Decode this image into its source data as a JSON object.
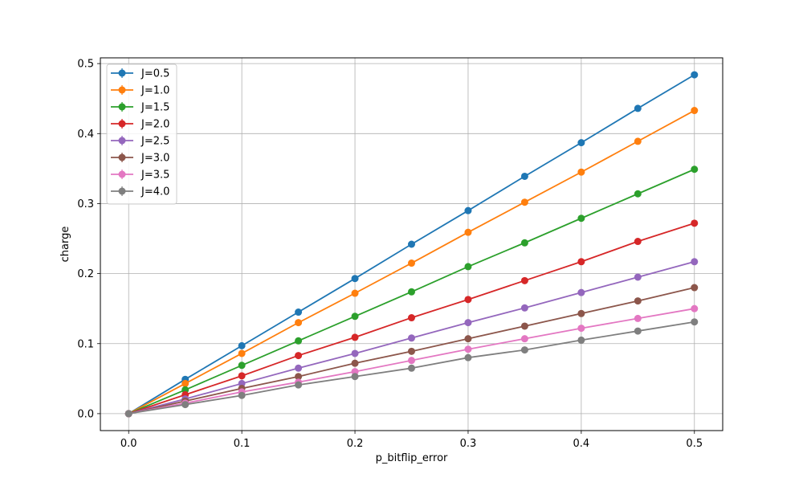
{
  "chart_data": {
    "type": "line",
    "title": "",
    "xlabel": "p_bitflip_error",
    "ylabel": "charge",
    "xlim": [
      -0.025,
      0.525
    ],
    "ylim": [
      -0.0242,
      0.5082
    ],
    "x_ticks": [
      "0.0",
      "0.1",
      "0.2",
      "0.3",
      "0.4",
      "0.5"
    ],
    "y_ticks": [
      "0.0",
      "0.1",
      "0.2",
      "0.3",
      "0.4",
      "0.5"
    ],
    "grid": true,
    "legend_position": "upper-left",
    "marker": "circle",
    "error_bars": true,
    "x": [
      0.0,
      0.05,
      0.1,
      0.15,
      0.2,
      0.25,
      0.3,
      0.35,
      0.4,
      0.45,
      0.5
    ],
    "series": [
      {
        "name": "J=0.5",
        "color": "#1f77b4",
        "values": [
          0.0,
          0.049,
          0.097,
          0.145,
          0.193,
          0.242,
          0.29,
          0.339,
          0.387,
          0.436,
          0.484
        ]
      },
      {
        "name": "J=1.0",
        "color": "#ff7f0e",
        "values": [
          0.0,
          0.043,
          0.086,
          0.13,
          0.172,
          0.215,
          0.259,
          0.302,
          0.345,
          0.389,
          0.433
        ]
      },
      {
        "name": "J=1.5",
        "color": "#2ca02c",
        "values": [
          0.0,
          0.034,
          0.069,
          0.104,
          0.139,
          0.174,
          0.21,
          0.244,
          0.279,
          0.314,
          0.349
        ]
      },
      {
        "name": "J=2.0",
        "color": "#d62728",
        "values": [
          0.0,
          0.027,
          0.054,
          0.083,
          0.109,
          0.137,
          0.163,
          0.19,
          0.217,
          0.246,
          0.272
        ]
      },
      {
        "name": "J=2.5",
        "color": "#9467bd",
        "values": [
          0.0,
          0.021,
          0.043,
          0.065,
          0.086,
          0.108,
          0.13,
          0.151,
          0.173,
          0.195,
          0.217
        ]
      },
      {
        "name": "J=3.0",
        "color": "#8c564b",
        "values": [
          0.0,
          0.018,
          0.036,
          0.053,
          0.072,
          0.089,
          0.107,
          0.125,
          0.143,
          0.161,
          0.18
        ]
      },
      {
        "name": "J=3.5",
        "color": "#e377c2",
        "values": [
          0.0,
          0.015,
          0.031,
          0.045,
          0.06,
          0.076,
          0.092,
          0.107,
          0.122,
          0.136,
          0.15
        ]
      },
      {
        "name": "J=4.0",
        "color": "#7f7f7f",
        "values": [
          0.0,
          0.013,
          0.026,
          0.041,
          0.053,
          0.065,
          0.08,
          0.091,
          0.105,
          0.118,
          0.131
        ]
      }
    ]
  }
}
